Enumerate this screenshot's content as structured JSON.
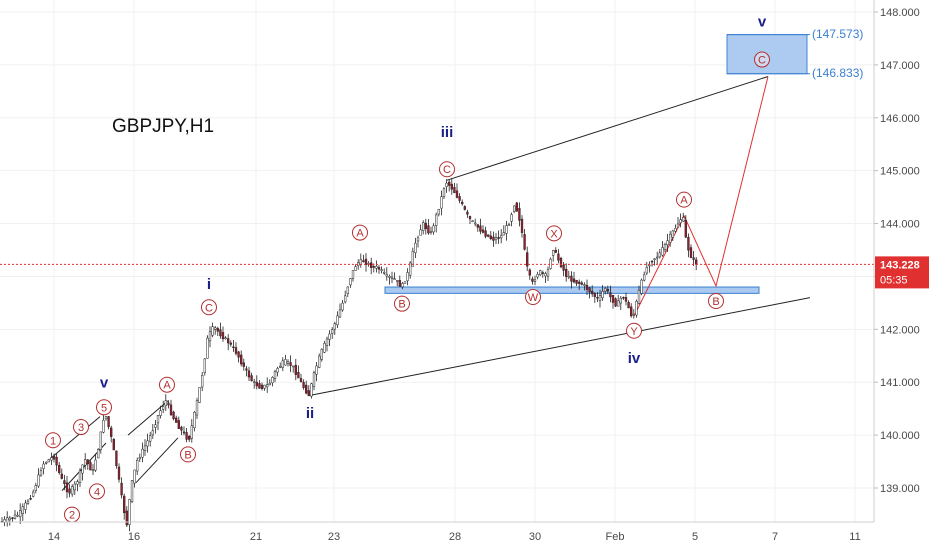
{
  "chart_data": {
    "type": "candlestick",
    "title": "GBPJPY,H1",
    "x_ticks": [
      "14",
      "16",
      "21",
      "23",
      "28",
      "30",
      "Feb",
      "5",
      "7",
      "11"
    ],
    "y_ticks": [
      "139.000",
      "140.000",
      "141.000",
      "142.000",
      "143.000",
      "144.000",
      "145.000",
      "146.000",
      "147.000",
      "148.000"
    ],
    "ylim": [
      138.3,
      148.2
    ],
    "current_price": "143.228",
    "countdown": "05:35",
    "target_labels": [
      "(147.573)",
      "(146.833)"
    ],
    "target_zone": [
      146.833,
      147.573
    ],
    "support_zone": [
      142.68,
      142.8
    ],
    "price_path": [
      [
        0,
        138.35
      ],
      [
        8,
        138.4
      ],
      [
        20,
        138.5
      ],
      [
        34,
        138.9
      ],
      [
        44,
        139.45
      ],
      [
        55,
        139.6
      ],
      [
        62,
        139.2
      ],
      [
        70,
        138.9
      ],
      [
        78,
        139.1
      ],
      [
        86,
        139.55
      ],
      [
        94,
        139.3
      ],
      [
        100,
        139.8
      ],
      [
        106,
        140.45
      ],
      [
        112,
        140.0
      ],
      [
        118,
        139.4
      ],
      [
        124,
        138.7
      ],
      [
        128,
        138.3
      ],
      [
        132,
        139.0
      ],
      [
        138,
        139.5
      ],
      [
        145,
        139.75
      ],
      [
        152,
        140.0
      ],
      [
        160,
        140.4
      ],
      [
        167,
        140.65
      ],
      [
        174,
        140.35
      ],
      [
        182,
        140.1
      ],
      [
        190,
        139.9
      ],
      [
        198,
        140.6
      ],
      [
        204,
        141.2
      ],
      [
        209,
        141.85
      ],
      [
        215,
        142.05
      ],
      [
        222,
        141.9
      ],
      [
        230,
        141.75
      ],
      [
        238,
        141.55
      ],
      [
        246,
        141.25
      ],
      [
        254,
        141.0
      ],
      [
        262,
        140.9
      ],
      [
        270,
        140.95
      ],
      [
        278,
        141.25
      ],
      [
        286,
        141.4
      ],
      [
        294,
        141.3
      ],
      [
        302,
        141.0
      ],
      [
        310,
        140.75
      ],
      [
        316,
        141.2
      ],
      [
        322,
        141.55
      ],
      [
        328,
        141.8
      ],
      [
        336,
        142.1
      ],
      [
        344,
        142.5
      ],
      [
        352,
        143.0
      ],
      [
        358,
        143.25
      ],
      [
        364,
        143.3
      ],
      [
        372,
        143.2
      ],
      [
        380,
        143.15
      ],
      [
        388,
        143.0
      ],
      [
        396,
        142.95
      ],
      [
        403,
        142.8
      ],
      [
        410,
        143.1
      ],
      [
        416,
        143.6
      ],
      [
        424,
        144.0
      ],
      [
        432,
        143.8
      ],
      [
        440,
        144.3
      ],
      [
        447,
        144.8
      ],
      [
        454,
        144.65
      ],
      [
        462,
        144.4
      ],
      [
        470,
        144.1
      ],
      [
        478,
        143.95
      ],
      [
        486,
        143.8
      ],
      [
        494,
        143.7
      ],
      [
        502,
        143.75
      ],
      [
        510,
        144.0
      ],
      [
        516,
        144.4
      ],
      [
        522,
        144.0
      ],
      [
        528,
        143.2
      ],
      [
        533,
        142.85
      ],
      [
        540,
        143.1
      ],
      [
        548,
        143.0
      ],
      [
        554,
        143.55
      ],
      [
        560,
        143.3
      ],
      [
        568,
        143.0
      ],
      [
        576,
        142.9
      ],
      [
        584,
        142.85
      ],
      [
        592,
        142.7
      ],
      [
        600,
        142.55
      ],
      [
        606,
        142.8
      ],
      [
        612,
        142.6
      ],
      [
        618,
        142.45
      ],
      [
        624,
        142.65
      ],
      [
        630,
        142.4
      ],
      [
        634,
        142.2
      ],
      [
        640,
        142.7
      ],
      [
        646,
        143.1
      ],
      [
        652,
        143.3
      ],
      [
        660,
        143.4
      ],
      [
        668,
        143.65
      ],
      [
        676,
        143.9
      ],
      [
        684,
        144.15
      ],
      [
        688,
        143.6
      ],
      [
        694,
        143.3
      ],
      [
        698,
        143.25
      ]
    ],
    "wave_labels": [
      {
        "text": "i",
        "x": 209,
        "price": 142.35,
        "kind": "wave",
        "dy": -22
      },
      {
        "text": "ii",
        "x": 310,
        "price": 140.7,
        "kind": "wave",
        "dy": 20
      },
      {
        "text": "iii",
        "x": 447,
        "price": 144.8,
        "kind": "wave",
        "dy": -44
      },
      {
        "text": "iv",
        "x": 634,
        "price": 142.2,
        "kind": "wave",
        "dy": 44
      },
      {
        "text": "v",
        "x": 104,
        "price": 140.45,
        "kind": "wave",
        "dy": -24
      },
      {
        "text": "v",
        "x": 762,
        "price": 147.5,
        "kind": "wave",
        "dy": -12
      },
      {
        "text": "C",
        "x": 209,
        "price": 141.85,
        "kind": "circle",
        "dy": -30
      },
      {
        "text": "C",
        "x": 447,
        "price": 144.8,
        "kind": "circle",
        "dy": -12
      },
      {
        "text": "C",
        "x": 762,
        "price": 146.95,
        "kind": "circle",
        "dy": -8
      },
      {
        "text": "A",
        "x": 360,
        "price": 143.3,
        "kind": "circle",
        "dy": -28
      },
      {
        "text": "B",
        "x": 402,
        "price": 142.75,
        "kind": "circle",
        "dy": 14
      },
      {
        "text": "W",
        "x": 533,
        "price": 142.8,
        "kind": "circle",
        "dy": 10
      },
      {
        "text": "X",
        "x": 554,
        "price": 143.55,
        "kind": "circle",
        "dy": -14
      },
      {
        "text": "Y",
        "x": 634,
        "price": 142.2,
        "kind": "circle",
        "dy": 12
      },
      {
        "text": "A",
        "x": 684,
        "price": 144.15,
        "kind": "circle",
        "dy": -16
      },
      {
        "text": "B",
        "x": 716,
        "price": 142.8,
        "kind": "circle",
        "dy": 14
      },
      {
        "text": "1",
        "x": 53,
        "price": 139.6,
        "kind": "circle",
        "dy": -16
      },
      {
        "text": "2",
        "x": 72,
        "price": 138.8,
        "kind": "circle",
        "dy": 16
      },
      {
        "text": "3",
        "x": 81,
        "price": 139.85,
        "kind": "circle",
        "dy": -16
      },
      {
        "text": "4",
        "x": 97,
        "price": 139.2,
        "kind": "circle",
        "dy": 14
      },
      {
        "text": "5",
        "x": 104,
        "price": 140.45,
        "kind": "circle",
        "dy": -4
      },
      {
        "text": "A",
        "x": 167,
        "price": 140.65,
        "kind": "circle",
        "dy": -16
      },
      {
        "text": "B",
        "x": 188,
        "price": 139.9,
        "kind": "circle",
        "dy": 14
      }
    ],
    "trendlines": [
      {
        "points": [
          [
            447,
            144.82
          ],
          [
            768,
            146.78
          ]
        ],
        "color": "#222222"
      },
      {
        "points": [
          [
            310,
            140.75
          ],
          [
            810,
            142.6
          ]
        ],
        "color": "#222222"
      },
      {
        "points": [
          [
            684,
            144.15
          ],
          [
            716,
            142.82
          ],
          [
            768,
            146.78
          ]
        ],
        "color": "#e03030"
      },
      {
        "points": [
          [
            634,
            142.25
          ],
          [
            684,
            144.15
          ]
        ],
        "color": "#e03030"
      },
      {
        "points": [
          [
            50,
            139.55
          ],
          [
            100,
            140.35
          ]
        ],
        "color": "#222222"
      },
      {
        "points": [
          [
            62,
            138.95
          ],
          [
            106,
            139.85
          ]
        ],
        "color": "#222222"
      },
      {
        "points": [
          [
            128,
            140.0
          ],
          [
            168,
            140.65
          ]
        ],
        "color": "#222222"
      },
      {
        "points": [
          [
            136,
            139.1
          ],
          [
            178,
            139.95
          ]
        ],
        "color": "#222222"
      }
    ]
  }
}
